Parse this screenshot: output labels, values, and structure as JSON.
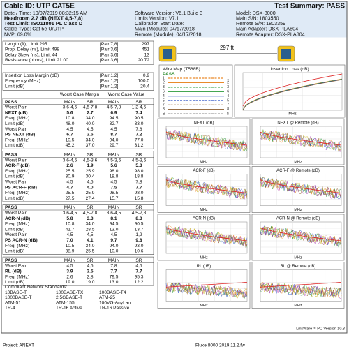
{
  "header": {
    "cable_id": "Cable ID: UTP CAT5E",
    "test_summary": "Test Summary: PASS",
    "rows": [
      [
        "Date / Time: 10/07/2019 08:32:15 AM",
        "Software Version: V6.1 Build 3",
        "Model: DSX-8000"
      ],
      [
        "Headroom 2.7 dB (NEXT 4,5-7,8)",
        "Limits Version: V7.1",
        "Main S/N: 1803550"
      ],
      [
        "Test Limit: ISO11801 PL Class D",
        "Calibration Start Date:",
        "Remote S/N: 1803359"
      ],
      [
        "Cable Type: Cat 5e U/UTP",
        "Main (Module): 04/17/2018",
        "Main Adapter: DSX-PLA804"
      ],
      [
        "NVP: 69.0%",
        "Remote (Module): 04/17/2018",
        "Remote Adapter: DSX-PLA804"
      ]
    ]
  },
  "summary": {
    "rows": [
      [
        "Length (ft), Limit 295",
        "[Pair 7,8]",
        "297"
      ],
      [
        "Prop. Delay (ns), Limit 498",
        "[Pair 3,6]",
        "451"
      ],
      [
        "Delay Skew (ns), Limit 44",
        "[Pair 3,6]",
        "13"
      ],
      [
        "Resistance (ohms), Limit 21.00",
        "[Pair 3,6]",
        "20.72"
      ]
    ]
  },
  "insertion_loss": {
    "rows": [
      [
        "Insertion Loss Margin (dB)",
        "[Pair 1,2]",
        "0.9"
      ],
      [
        "Frequency (MHz)",
        "[Pair 1,2]",
        "100.0"
      ],
      [
        "Limit (dB)",
        "[Pair 1,2]",
        "20.4"
      ]
    ]
  },
  "margins": {
    "headings": [
      "Worst Case Margin",
      "Worst Case Value"
    ],
    "groups": [
      {
        "columns": [
          "PASS",
          "MAIN",
          "SR",
          "MAIN",
          "SR"
        ],
        "rows": [
          [
            "Worst Pair",
            "3,6-4,5",
            "4,5-7,8",
            "4,5-7,8",
            "1,2-4,5"
          ],
          [
            "NEXT (dB)",
            "5.6",
            "2.7",
            "6.9",
            "7.4"
          ],
          [
            "Freq. (MHz)",
            "10.8",
            "34.0",
            "94.5",
            "90.5"
          ],
          [
            "Limit (dB)",
            "48.0",
            "40.0",
            "32.7",
            "33.0"
          ],
          [
            "Worst Pair",
            "4,5",
            "4,5",
            "4,5",
            "7,8"
          ],
          [
            "PS NEXT (dB)",
            "6.7",
            "3.6",
            "8.7",
            "7.2"
          ],
          [
            "Freq. (MHz)",
            "10.5",
            "34.0",
            "94.0",
            "77.0"
          ],
          [
            "Limit (dB)",
            "45.2",
            "37.0",
            "29.7",
            "31.2"
          ]
        ]
      },
      {
        "columns": [
          "PASS",
          "MAIN",
          "SR",
          "MAIN",
          "SR"
        ],
        "rows": [
          [
            "Worst Pair",
            "3,6-4,5",
            "4,5-3,6",
            "4,5-3,6",
            "4,5-3,6"
          ],
          [
            "ACR-F (dB)",
            "2.6",
            "1.9",
            "5.6",
            "5.3"
          ],
          [
            "Freq. (MHz)",
            "25.5",
            "25.9",
            "98.0",
            "98.0"
          ],
          [
            "Limit (dB)",
            "30.9",
            "30.4",
            "18.8",
            "18.8"
          ],
          [
            "Worst Pair",
            "4,5",
            "4,5",
            "4,5",
            "7,8"
          ],
          [
            "PS ACR-F (dB)",
            "4.7",
            "4.0",
            "7.5",
            "7.7"
          ],
          [
            "Freq. (MHz)",
            "25.5",
            "25.9",
            "98.5",
            "98.0"
          ],
          [
            "Limit (dB)",
            "27.5",
            "27.4",
            "15.7",
            "15.8"
          ]
        ]
      },
      {
        "columns": [
          "PASS",
          "MAIN",
          "SR",
          "MAIN",
          "SR"
        ],
        "rows": [
          [
            "Worst Pair",
            "3,6-4,5",
            "4,5-7,8",
            "3,6-4,5",
            "4,5-7,8"
          ],
          [
            "ACR-N (dB)",
            "5.8",
            "3.3",
            "8.1",
            "8.3"
          ],
          [
            "Freq. (MHz)",
            "10.8",
            "34.0",
            "94.5",
            "90.5"
          ],
          [
            "Limit (dB)",
            "41.7",
            "28.5",
            "13.0",
            "13.7"
          ],
          [
            "Worst Pair",
            "4,5",
            "4,5",
            "4,5",
            "1,2"
          ],
          [
            "PS ACR-N (dB)",
            "7.0",
            "4.1",
            "9.7",
            "9.8"
          ],
          [
            "Freq. (MHz)",
            "10.5",
            "34.0",
            "94.0",
            "93.0"
          ],
          [
            "Limit (dB)",
            "38.9",
            "25.5",
            "10.0",
            "10.6"
          ]
        ]
      },
      {
        "columns": [
          "PASS",
          "MAIN",
          "SR",
          "MAIN",
          "SR"
        ],
        "rows": [
          [
            "Worst Pair",
            "4,5",
            "4,5",
            "7,8",
            "4,5"
          ],
          [
            "RL (dB)",
            "3.9",
            "3.5",
            "7.7",
            "7.7"
          ],
          [
            "Freq. (MHz)",
            "2.6",
            "2.8",
            "79.5",
            "95.3"
          ],
          [
            "Limit (dB)",
            "19.0",
            "19.0",
            "13.0",
            "12.2"
          ]
        ]
      }
    ]
  },
  "standards": {
    "title": "Compliant Network Standards:",
    "rows": [
      [
        "10BASE-T",
        "100BASE-TX",
        "100BASE-T4"
      ],
      [
        "1000BASE-T",
        "2.5GBASE-T",
        "ATM-25"
      ],
      [
        "ATM-51",
        "ATM-155",
        "100VG-AnyLan"
      ],
      [
        "TR-4",
        "TR-16 Active",
        "TR-16 Passive"
      ]
    ]
  },
  "diagram": {
    "length": "297 ft",
    "wire_map": {
      "title": "Wire Map (T568B)",
      "result": "PASS",
      "pins": [
        "1",
        "2",
        "3",
        "6",
        "4",
        "5",
        "7",
        "8",
        "S"
      ]
    },
    "insertion_loss_title": "Insertion Loss (dB)",
    "plots": [
      "NEXT (dB)",
      "NEXT @ Remote (dB)",
      "ACR-F (dB)",
      "ACR-F @ Remote (dB)",
      "ACR-N (dB)",
      "ACR-N @ Remote (dB)",
      "RL (dB)",
      "RL @ Remote (dB)"
    ],
    "x_unit": "MHz"
  },
  "footer": {
    "software": "LinkWare™ PC Version 10.3",
    "project": "Project: ANEXT",
    "file": "Fluke 8000 2019.11.2.fw"
  }
}
